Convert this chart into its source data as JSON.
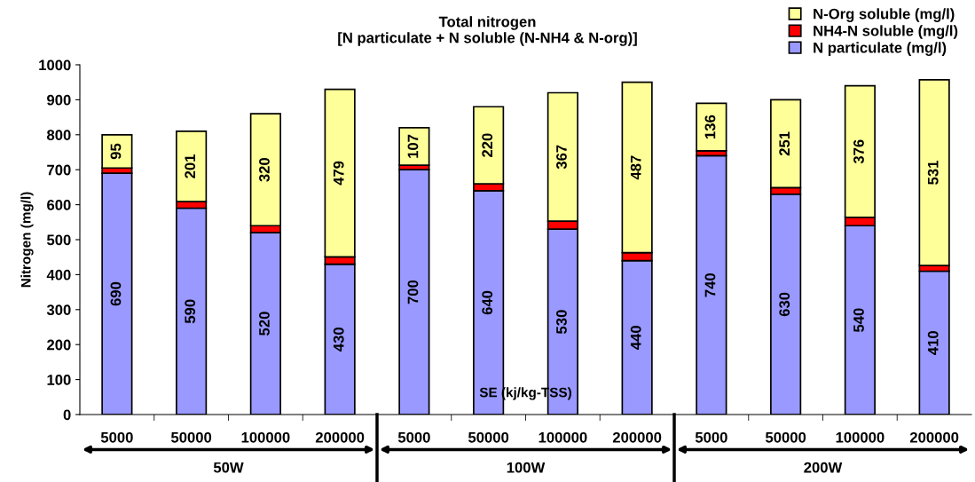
{
  "chart_data": {
    "type": "bar",
    "stacked": true,
    "title": "Total nitrogen\n[N particulate + N soluble (N-NH4 & N-org)]",
    "xlabel": "SE (kj/kg-TSS)",
    "ylabel": "Nitrogen (mg/l)",
    "categories": [
      "5000",
      "50000",
      "100000",
      "200000",
      "5000",
      "50000",
      "100000",
      "200000",
      "5000",
      "50000",
      "100000",
      "200000"
    ],
    "series": [
      {
        "name": "N particulate (mg/l)",
        "color": "#9999ff",
        "values": [
          690,
          590,
          520,
          430,
          700,
          640,
          530,
          440,
          740,
          630,
          540,
          410
        ],
        "value_labels": [
          "690",
          "590",
          "520",
          "430",
          "700",
          "640",
          "530",
          "440",
          "740",
          "630",
          "540",
          "410"
        ]
      },
      {
        "name": "NH4-N soluble (mg/l)",
        "color": "#ff0000",
        "values": [
          15,
          19,
          20,
          21,
          13,
          20,
          23,
          23,
          14,
          19,
          24,
          16
        ]
      },
      {
        "name": "N-Org soluble (mg/l)",
        "color": "#ffff99",
        "values": [
          95,
          201,
          320,
          479,
          107,
          220,
          367,
          487,
          136,
          251,
          376,
          531
        ],
        "value_labels": [
          "95",
          "201",
          "320",
          "479",
          "107",
          "220",
          "367",
          "487",
          "136",
          "251",
          "376",
          "531"
        ]
      }
    ],
    "ylim": [
      0,
      1000
    ],
    "yticks": [
      0,
      100,
      200,
      300,
      400,
      500,
      600,
      700,
      800,
      900,
      1000
    ],
    "annotations": [
      "50W",
      "100W",
      "200W"
    ],
    "legend": "top right",
    "grid": false
  }
}
